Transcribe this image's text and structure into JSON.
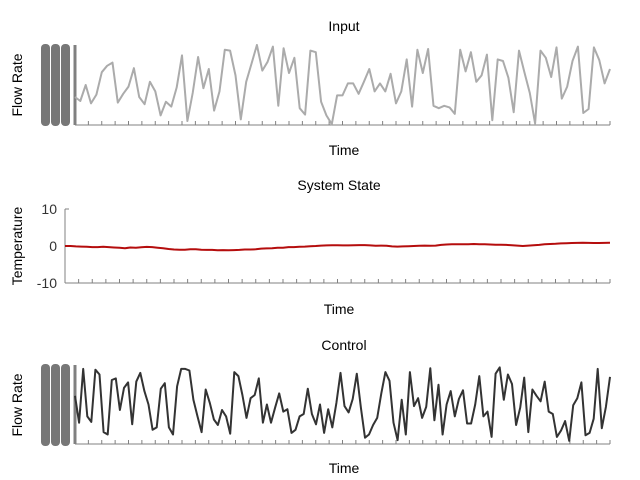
{
  "colors": {
    "input": "#ababab",
    "state": "#b50d0d",
    "control": "#333333",
    "axis": "#808080"
  },
  "chart_data": [
    {
      "type": "line",
      "title": "Input",
      "xlabel": "Time",
      "ylabel": "Flow Rate",
      "xlim": [
        0,
        89
      ],
      "ylim": [
        0,
        1
      ],
      "grid": false,
      "series": [
        {
          "values": [
            0.35,
            0.3,
            0.5,
            0.27,
            0.38,
            0.66,
            0.74,
            0.78,
            0.28,
            0.39,
            0.48,
            0.71,
            0.35,
            0.26,
            0.54,
            0.42,
            0.12,
            0.29,
            0.23,
            0.47,
            0.87,
            0.05,
            0.4,
            0.85,
            0.46,
            0.7,
            0.18,
            0.42,
            0.94,
            0.93,
            0.62,
            0.07,
            0.54,
            0.77,
            1.0,
            0.68,
            0.79,
            0.98,
            0.24,
            0.96,
            0.65,
            0.84,
            0.21,
            0.13,
            0.93,
            0.91,
            0.29,
            0.12,
            0.01,
            0.37,
            0.37,
            0.52,
            0.52,
            0.39,
            0.54,
            0.7,
            0.42,
            0.52,
            0.42,
            0.64,
            0.27,
            0.42,
            0.82,
            0.23,
            0.94,
            0.65,
            0.95,
            0.24,
            0.21,
            0.24,
            0.22,
            0.14,
            0.94,
            0.67,
            0.91,
            0.54,
            0.62,
            0.88,
            0.06,
            0.82,
            0.8,
            0.59,
            0.16,
            0.93,
            0.66,
            0.4,
            0.02,
            0.93,
            0.84,
            0.6,
            0.97,
            0.33,
            0.48,
            0.8,
            0.98,
            0.15,
            0.2,
            0.97,
            0.81,
            0.52,
            0.7
          ]
        }
      ]
    },
    {
      "type": "line",
      "title": "System State",
      "xlabel": "Time",
      "ylabel": "Temperature",
      "xlim": [
        0,
        89
      ],
      "ylim": [
        -10,
        10
      ],
      "yticks": [
        10,
        0,
        -10
      ],
      "grid": false,
      "series": [
        {
          "values": [
            0.0,
            0.0,
            -0.1,
            -0.15,
            -0.2,
            -0.3,
            -0.3,
            -0.2,
            -0.3,
            -0.4,
            -0.5,
            -0.6,
            -0.4,
            -0.45,
            -0.35,
            -0.25,
            -0.3,
            -0.45,
            -0.6,
            -0.8,
            -0.95,
            -1.0,
            -1.0,
            -0.9,
            -0.9,
            -1.0,
            -1.05,
            -1.05,
            -1.15,
            -1.1,
            -1.15,
            -1.1,
            -1.05,
            -0.95,
            -0.95,
            -0.9,
            -0.7,
            -0.65,
            -0.6,
            -0.45,
            -0.5,
            -0.3,
            -0.3,
            -0.2,
            -0.15,
            -0.05,
            0.0,
            0.1,
            0.15,
            0.2,
            0.2,
            0.15,
            0.15,
            0.2,
            0.25,
            0.25,
            0.15,
            0.05,
            0.1,
            0.05,
            -0.1,
            -0.15,
            -0.1,
            -0.05,
            0.0,
            0.05,
            0.1,
            0.05,
            0.1,
            0.3,
            0.4,
            0.45,
            0.45,
            0.45,
            0.5,
            0.55,
            0.5,
            0.45,
            0.4,
            0.35,
            0.35,
            0.3,
            0.2,
            0.1,
            0.0,
            0.1,
            0.2,
            0.3,
            0.45,
            0.55,
            0.6,
            0.7,
            0.75,
            0.8,
            0.85,
            0.9,
            0.85,
            0.8,
            0.8,
            0.85,
            0.9
          ]
        }
      ]
    },
    {
      "type": "line",
      "title": "Control",
      "xlabel": "Time",
      "ylabel": "Flow Rate",
      "xlim": [
        0,
        89
      ],
      "ylim": [
        0,
        1
      ],
      "grid": false,
      "series": [
        {
          "values": [
            0.61,
            0.27,
            0.95,
            0.35,
            0.28,
            0.94,
            0.88,
            0.15,
            0.12,
            0.81,
            0.83,
            0.43,
            0.71,
            0.78,
            0.25,
            0.79,
            0.9,
            0.67,
            0.5,
            0.18,
            0.21,
            0.7,
            0.77,
            0.21,
            0.12,
            0.73,
            0.95,
            0.95,
            0.93,
            0.56,
            0.35,
            0.15,
            0.69,
            0.52,
            0.31,
            0.24,
            0.43,
            0.35,
            0.13,
            0.91,
            0.86,
            0.62,
            0.33,
            0.58,
            0.62,
            0.83,
            0.27,
            0.5,
            0.27,
            0.46,
            0.64,
            0.41,
            0.44,
            0.14,
            0.18,
            0.35,
            0.38,
            0.7,
            0.38,
            0.25,
            0.5,
            0.14,
            0.44,
            0.21,
            0.52,
            0.9,
            0.48,
            0.4,
            0.57,
            0.89,
            0.46,
            0.08,
            0.12,
            0.24,
            0.33,
            0.64,
            0.91,
            0.8,
            0.27,
            0.05,
            0.56,
            0.12,
            0.91,
            0.48,
            0.58,
            0.33,
            0.47,
            0.96,
            0.3,
            0.75,
            0.12,
            0.5,
            0.67,
            0.35,
            0.57,
            0.68,
            0.26,
            0.26,
            0.5,
            0.86,
            0.35,
            0.41,
            0.09,
            0.89,
            0.97,
            0.56,
            0.88,
            0.76,
            0.24,
            0.46,
            0.84,
            0.15,
            0.69,
            0.61,
            0.54,
            0.79,
            0.41,
            0.38,
            0.09,
            0.17,
            0.29,
            0.04,
            0.49,
            0.58,
            0.78,
            0.11,
            0.14,
            0.32,
            0.95,
            0.2,
            0.47,
            0.85
          ]
        }
      ]
    }
  ]
}
